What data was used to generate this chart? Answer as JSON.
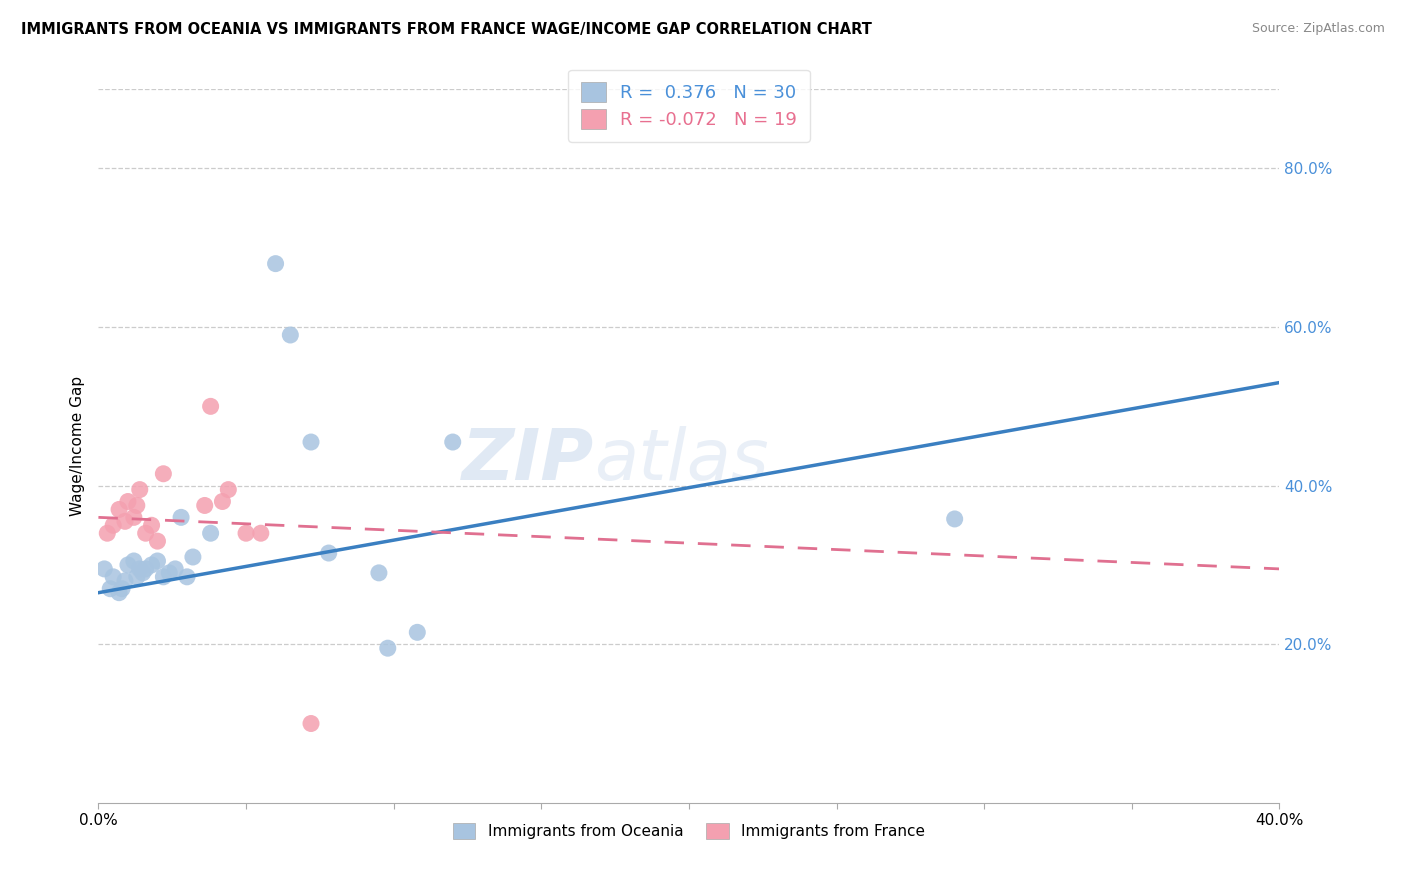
{
  "title": "IMMIGRANTS FROM OCEANIA VS IMMIGRANTS FROM FRANCE WAGE/INCOME GAP CORRELATION CHART",
  "source": "Source: ZipAtlas.com",
  "ylabel": "Wage/Income Gap",
  "xlim": [
    0.0,
    0.4
  ],
  "ylim": [
    0.0,
    0.9
  ],
  "yticks": [
    0.2,
    0.4,
    0.6,
    0.8
  ],
  "xtick_vals": [
    0.0,
    0.05,
    0.1,
    0.15,
    0.2,
    0.25,
    0.3,
    0.35,
    0.4
  ],
  "oceania_R": 0.376,
  "oceania_N": 30,
  "france_R": -0.072,
  "france_N": 19,
  "oceania_color": "#a8c4e0",
  "france_color": "#f4a0b0",
  "oceania_line_color": "#3a7fc1",
  "france_line_color": "#e07090",
  "watermark_part1": "ZIP",
  "watermark_part2": "atlas",
  "oceania_x": [
    0.002,
    0.004,
    0.005,
    0.007,
    0.008,
    0.009,
    0.01,
    0.012,
    0.013,
    0.014,
    0.015,
    0.016,
    0.018,
    0.02,
    0.022,
    0.024,
    0.026,
    0.028,
    0.03,
    0.032,
    0.038,
    0.06,
    0.065,
    0.072,
    0.078,
    0.095,
    0.098,
    0.108,
    0.12,
    0.29
  ],
  "oceania_y": [
    0.295,
    0.27,
    0.285,
    0.265,
    0.27,
    0.28,
    0.3,
    0.305,
    0.285,
    0.295,
    0.29,
    0.295,
    0.3,
    0.305,
    0.285,
    0.29,
    0.295,
    0.36,
    0.285,
    0.31,
    0.34,
    0.68,
    0.59,
    0.455,
    0.315,
    0.29,
    0.195,
    0.215,
    0.455,
    0.358
  ],
  "france_x": [
    0.003,
    0.005,
    0.007,
    0.009,
    0.01,
    0.012,
    0.013,
    0.014,
    0.016,
    0.018,
    0.02,
    0.022,
    0.036,
    0.038,
    0.042,
    0.044,
    0.05,
    0.055,
    0.072
  ],
  "france_y": [
    0.34,
    0.35,
    0.37,
    0.355,
    0.38,
    0.36,
    0.375,
    0.395,
    0.34,
    0.35,
    0.33,
    0.415,
    0.375,
    0.5,
    0.38,
    0.395,
    0.34,
    0.34,
    0.1
  ],
  "oceania_trend_x0": 0.0,
  "oceania_trend_y0": 0.265,
  "oceania_trend_x1": 0.4,
  "oceania_trend_y1": 0.53,
  "france_trend_x0": 0.0,
  "france_trend_y0": 0.36,
  "france_trend_x1": 0.4,
  "france_trend_y1": 0.295
}
